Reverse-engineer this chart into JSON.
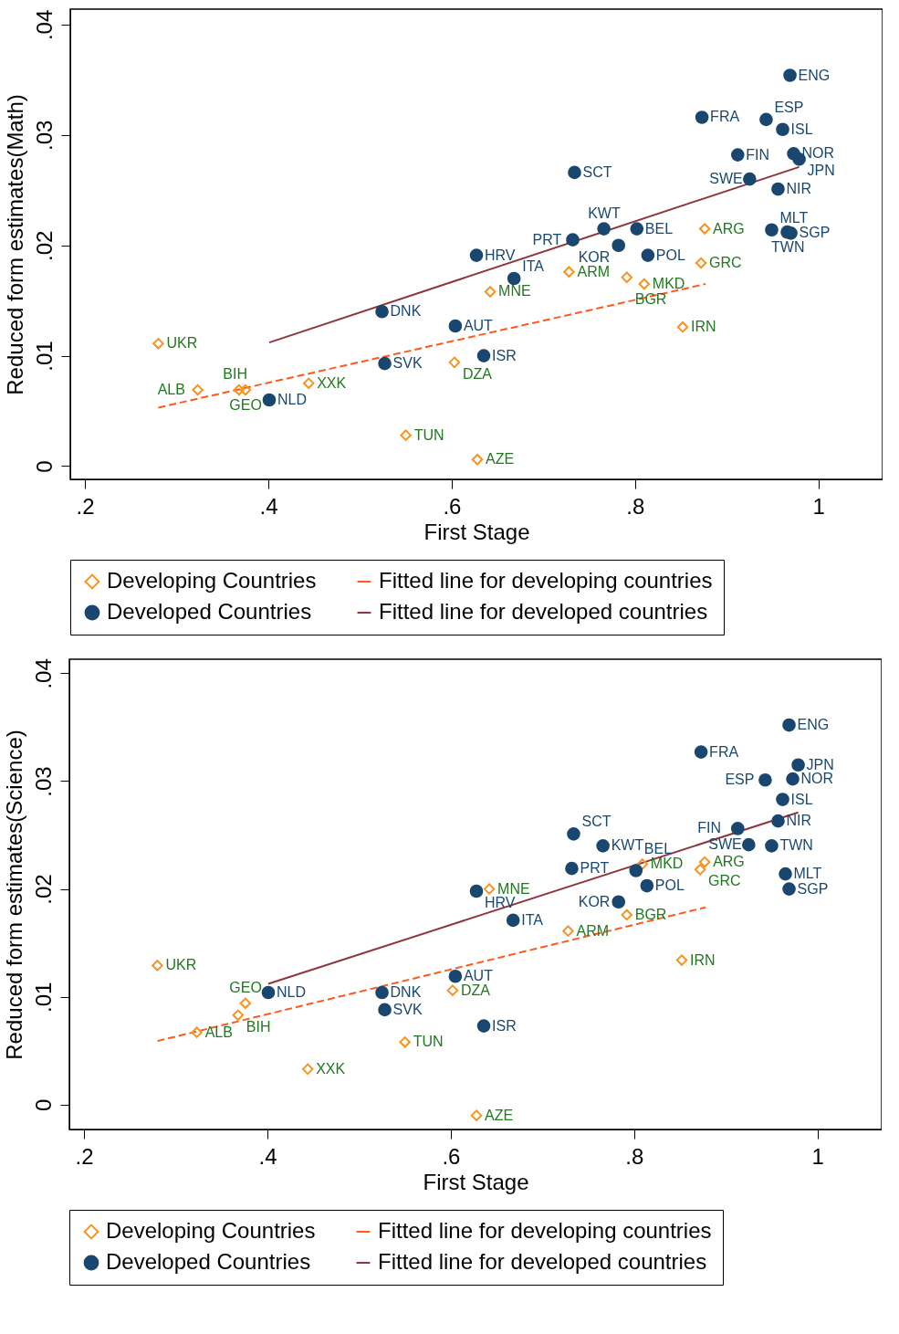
{
  "chart_data": [
    {
      "type": "scatter",
      "xlabel": "First Stage",
      "ylabel": "Reduced form estimates(Math)",
      "xlim": [
        0.184,
        1.07
      ],
      "ylim": [
        -0.0012,
        0.0414
      ],
      "xticks": [
        {
          "value": 0.2,
          "label": ".2"
        },
        {
          "value": 0.4,
          "label": ".4"
        },
        {
          "value": 0.6,
          "label": ".6"
        },
        {
          "value": 0.8,
          "label": ".8"
        },
        1
      ],
      "yticks": [
        0,
        {
          "value": 0.01,
          "label": ".01"
        },
        {
          "value": 0.02,
          "label": ".02"
        },
        {
          "value": 0.03,
          "label": ".03"
        },
        {
          "value": 0.04,
          "label": ".04"
        }
      ],
      "grid": false,
      "legend": "bottom",
      "series": [
        {
          "name": "Developing Countries",
          "type": "scatter",
          "marker": "diamond",
          "color": "#f7931e",
          "x": [
            0.28,
            0.323,
            0.368,
            0.375,
            0.444,
            0.55,
            0.603,
            0.628,
            0.642,
            0.728,
            0.791,
            0.81,
            0.876,
            0.872,
            0.852
          ],
          "values": [
            0.0111,
            0.0069,
            0.0069,
            0.0069,
            0.0075,
            0.0028,
            0.0094,
            0.0006,
            0.0158,
            0.0176,
            0.0171,
            0.0165,
            0.0215,
            0.0184,
            0.0126
          ],
          "value_labels": [
            "UKR",
            "ALB",
            "BIH",
            "GEO",
            "XXK",
            "TUN",
            "DZA",
            "AZE",
            "MNE",
            "ARM",
            "BGR",
            "MKD",
            "ARG",
            "GRC",
            "IRN"
          ]
        },
        {
          "name": "Fitted line for developing countries",
          "type": "line",
          "line_style": "dashed",
          "color": "#fd5a1e",
          "x": [
            0.28,
            0.877
          ],
          "values": [
            0.0053,
            0.0165
          ]
        },
        {
          "name": "Developed Countries",
          "type": "scatter",
          "marker": "circle",
          "color": "#1a476f",
          "x": [
            0.401,
            0.524,
            0.527,
            0.604,
            0.635,
            0.627,
            0.668,
            0.732,
            0.734,
            0.766,
            0.802,
            0.782,
            0.814,
            0.873,
            0.912,
            0.925,
            0.956,
            0.943,
            0.961,
            0.973,
            0.979,
            0.969,
            0.949,
            0.966,
            0.97
          ],
          "values": [
            0.006,
            0.014,
            0.0093,
            0.0127,
            0.01,
            0.0191,
            0.017,
            0.0205,
            0.0266,
            0.0215,
            0.0215,
            0.02,
            0.0191,
            0.0316,
            0.0282,
            0.026,
            0.0251,
            0.0314,
            0.0305,
            0.0283,
            0.0278,
            0.0354,
            0.0214,
            0.0212,
            0.0211
          ],
          "value_labels": [
            "NLD",
            "DNK",
            "SVK",
            "AUT",
            "ISR",
            "HRV",
            "ITA",
            "PRT",
            "SCT",
            "KWT",
            "BEL",
            "KOR",
            "POL",
            "FRA",
            "FIN",
            "SWE",
            "NIR",
            "ESP",
            "ISL",
            "NOR",
            "JPN",
            "ENG",
            "MLT",
            "TWN",
            "SGP"
          ]
        },
        {
          "name": "Fitted line for developed countries",
          "type": "line",
          "line_style": "solid",
          "color": "#90353b",
          "x": [
            0.401,
            0.979
          ],
          "values": [
            0.0112,
            0.0271
          ]
        }
      ]
    },
    {
      "type": "scatter",
      "xlabel": "First Stage",
      "ylabel": "Reduced form estimates(Science)",
      "xlim": [
        0.184,
        1.07
      ],
      "ylim": [
        -0.0023,
        0.0413
      ],
      "xticks": [
        {
          "value": 0.2,
          "label": ".2"
        },
        {
          "value": 0.4,
          "label": ".4"
        },
        {
          "value": 0.6,
          "label": ".6"
        },
        {
          "value": 0.8,
          "label": ".8"
        },
        1
      ],
      "yticks": [
        0,
        {
          "value": 0.01,
          "label": ".01"
        },
        {
          "value": 0.02,
          "label": ".02"
        },
        {
          "value": 0.03,
          "label": ".03"
        },
        {
          "value": 0.04,
          "label": ".04"
        }
      ],
      "grid": false,
      "legend": "bottom",
      "series": [
        {
          "name": "Developing Countries",
          "type": "scatter",
          "marker": "diamond",
          "color": "#f7931e",
          "x": [
            0.28,
            0.323,
            0.368,
            0.376,
            0.444,
            0.55,
            0.602,
            0.628,
            0.642,
            0.728,
            0.792,
            0.809,
            0.877,
            0.872,
            0.852
          ],
          "values": [
            0.0129,
            0.0067,
            0.0083,
            0.0094,
            0.0033,
            0.0058,
            0.0106,
            -0.001,
            0.02,
            0.0161,
            0.0176,
            0.0223,
            0.0225,
            0.0218,
            0.0134
          ],
          "value_labels": [
            "UKR",
            "ALB",
            "BIH",
            "GEO",
            "XXK",
            "TUN",
            "DZA",
            "AZE",
            "MNE",
            "ARM",
            "BGR",
            "MKD",
            "ARG",
            "GRC",
            "IRN"
          ]
        },
        {
          "name": "Fitted line for developing countries",
          "type": "line",
          "line_style": "dashed",
          "color": "#fd5a1e",
          "x": [
            0.28,
            0.878
          ],
          "values": [
            0.0059,
            0.0183
          ]
        },
        {
          "name": "Developed Countries",
          "type": "scatter",
          "marker": "circle",
          "color": "#1a476f",
          "x": [
            0.401,
            0.525,
            0.528,
            0.605,
            0.636,
            0.628,
            0.668,
            0.732,
            0.734,
            0.766,
            0.802,
            0.783,
            0.814,
            0.873,
            0.913,
            0.925,
            0.95,
            0.957,
            0.962,
            0.943,
            0.973,
            0.979,
            0.969,
            0.965,
            0.969
          ],
          "values": [
            0.0104,
            0.0104,
            0.0088,
            0.0119,
            0.0073,
            0.0198,
            0.0171,
            0.0219,
            0.0251,
            0.024,
            0.0217,
            0.0188,
            0.0203,
            0.0327,
            0.0256,
            0.0241,
            0.024,
            0.0263,
            0.0283,
            0.0301,
            0.0302,
            0.0315,
            0.0352,
            0.0214,
            0.02
          ],
          "value_labels": [
            "NLD",
            "DNK",
            "SVK",
            "AUT",
            "ISR",
            "HRV",
            "ITA",
            "PRT",
            "SCT",
            "KWT",
            "BEL",
            "KOR",
            "POL",
            "FRA",
            "FIN",
            "SWE",
            "TWN",
            "NIR",
            "ISL",
            "ESP",
            "NOR",
            "JPN",
            "ENG",
            "MLT",
            "SGP"
          ]
        },
        {
          "name": "Fitted line for developed countries",
          "type": "line",
          "line_style": "solid",
          "color": "#90353b",
          "x": [
            0.401,
            0.979
          ],
          "values": [
            0.0112,
            0.0271
          ]
        }
      ]
    }
  ]
}
